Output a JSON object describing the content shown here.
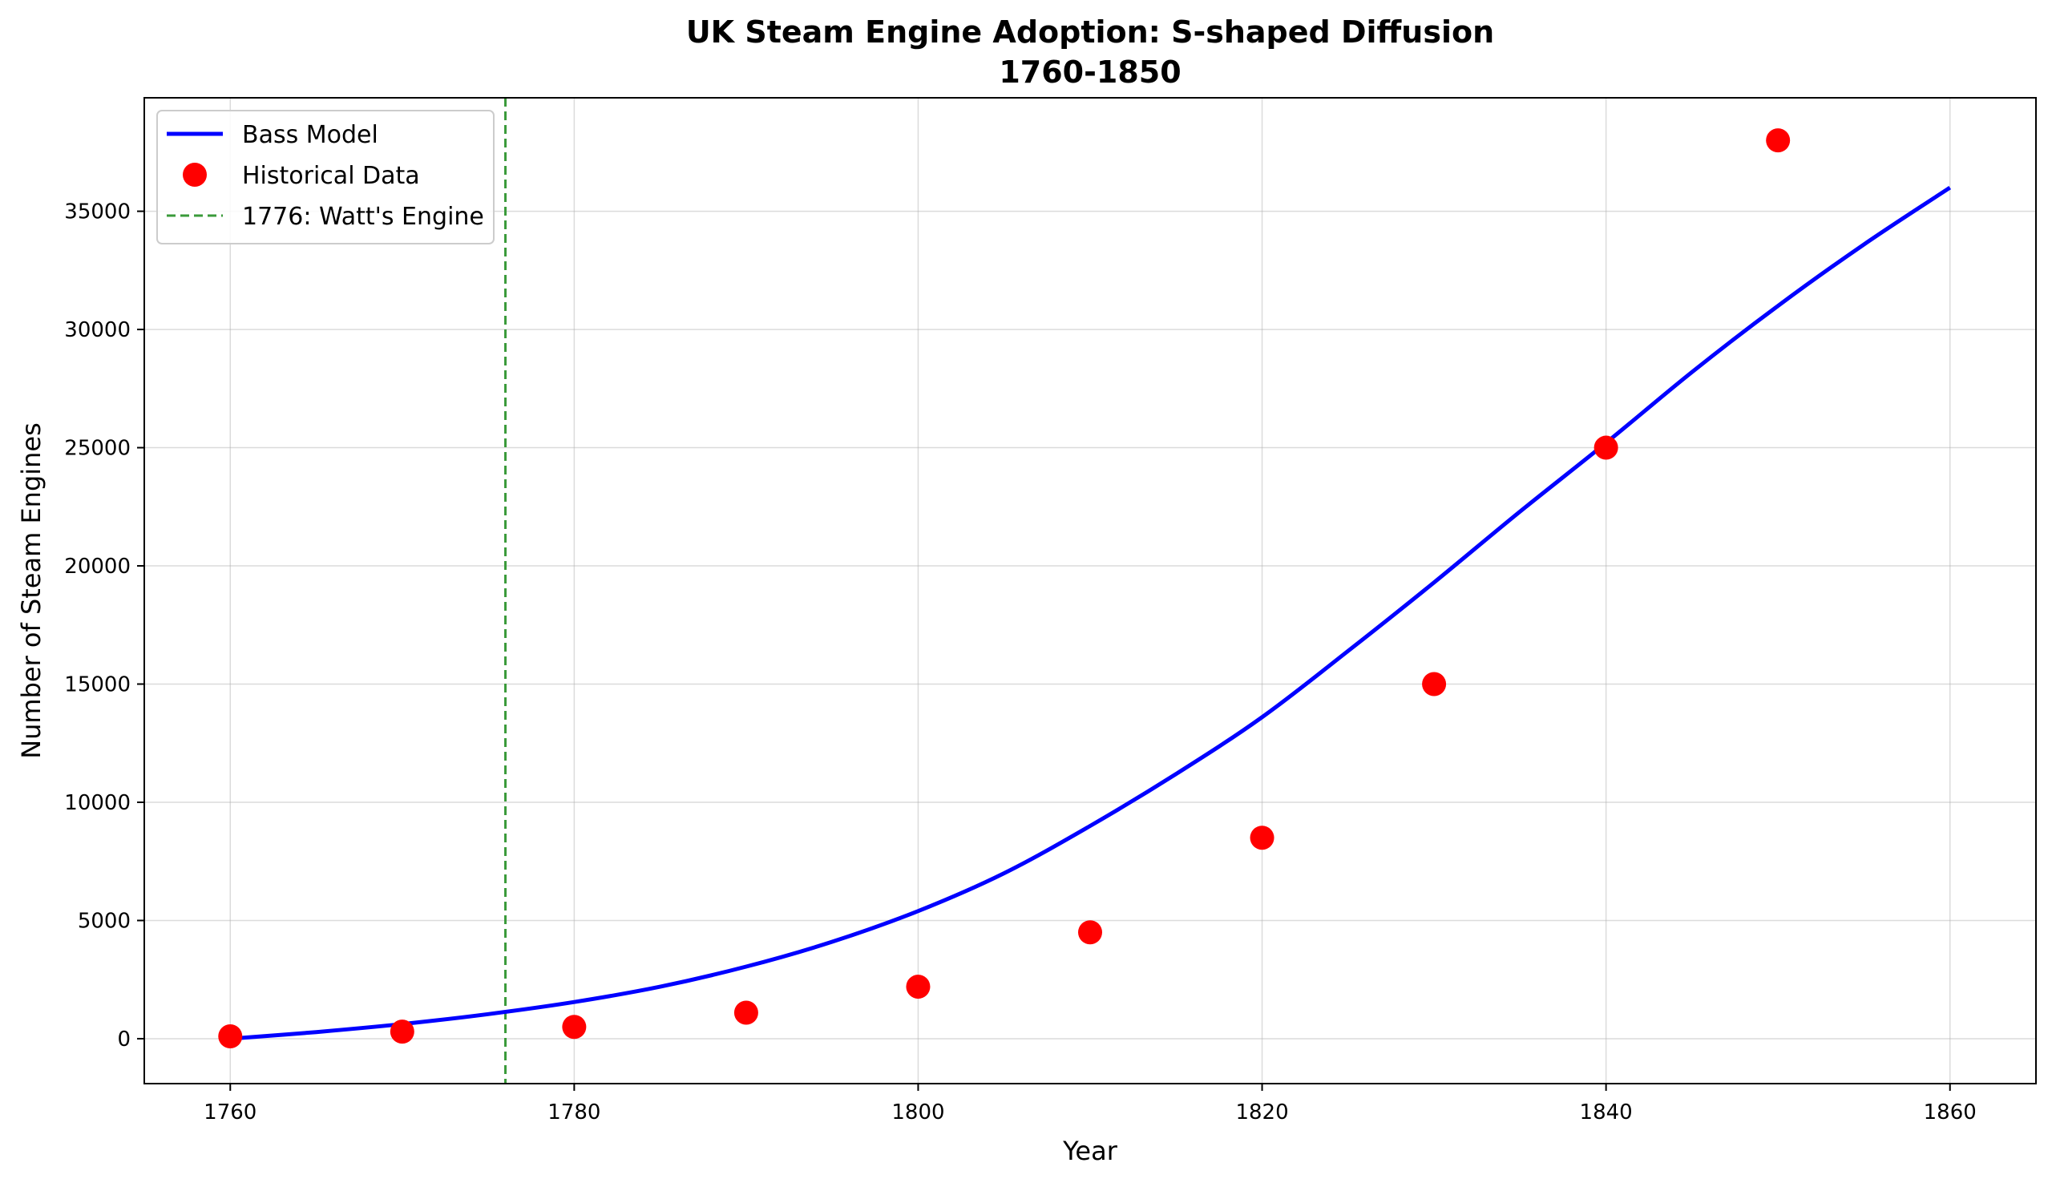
{
  "chart_data": {
    "type": "line",
    "title": "UK Steam Engine Adoption: S-shaped Diffusion",
    "subtitle": "1760-1850",
    "xlabel": "Year",
    "ylabel": "Number of Steam Engines",
    "xlim": [
      1755,
      1865
    ],
    "ylim": [
      -1900,
      39800
    ],
    "x_ticks": [
      1760,
      1780,
      1800,
      1820,
      1840,
      1860
    ],
    "y_ticks": [
      0,
      5000,
      10000,
      15000,
      20000,
      25000,
      30000,
      35000
    ],
    "grid": true,
    "legend_position": "top-left",
    "series": [
      {
        "name": "Bass Model",
        "type": "line",
        "color": "#0000ff",
        "x": [
          1760,
          1765,
          1770,
          1775,
          1780,
          1785,
          1790,
          1795,
          1800,
          1805,
          1810,
          1815,
          1820,
          1825,
          1830,
          1835,
          1840,
          1845,
          1850,
          1855,
          1860
        ],
        "y": [
          0,
          280,
          620,
          1040,
          1550,
          2200,
          3050,
          4100,
          5400,
          7000,
          9000,
          11200,
          13600,
          16400,
          19300,
          22300,
          25200,
          28200,
          31000,
          33600,
          36000
        ]
      },
      {
        "name": "Historical Data",
        "type": "scatter",
        "color": "#ff0000",
        "x": [
          1760,
          1770,
          1780,
          1790,
          1800,
          1810,
          1820,
          1830,
          1840,
          1850
        ],
        "y": [
          100,
          300,
          500,
          1100,
          2200,
          4500,
          8500,
          15000,
          25000,
          38000
        ]
      }
    ],
    "annotations": [
      {
        "type": "vline",
        "x": 1776,
        "label": "1776: Watt's Engine",
        "color": "#3a9a3a",
        "style": "dashed"
      }
    ]
  }
}
